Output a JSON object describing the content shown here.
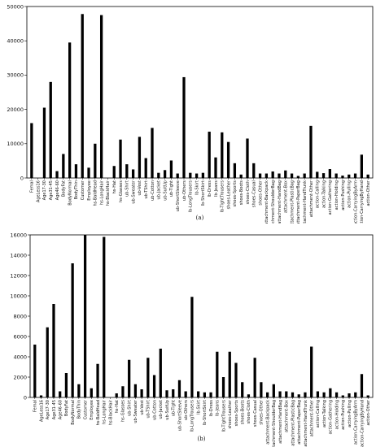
{
  "chart_data": [
    {
      "type": "bar",
      "caption": "(a)",
      "ylim": [
        0,
        50000
      ],
      "yticks": [
        0,
        10000,
        20000,
        30000,
        40000,
        50000
      ],
      "grid": false,
      "categories": [
        "Femal",
        "AgeLess16",
        "Age17-30",
        "Age31-45",
        "Age46-60",
        "BodyFat",
        "BodyNormal",
        "BodyThin",
        "Customer",
        "Employee",
        "hs-BaldHead",
        "hs-LongHair",
        "hs-BlackHair",
        "hs-Hat",
        "hs-Glasses",
        "ub-Shirt",
        "ub-Sweater",
        "ub-Vest",
        "ub-TShirt",
        "ub-Cotton",
        "ub-Jacket",
        "ub-SuitUp",
        "ub-Tight",
        "ub-ShortSleeve",
        "ub-Others",
        "lb-LongTrousers",
        "lb-Skirt",
        "lb-ShortSkirt",
        "lb-Dress",
        "lb-Jeans",
        "lb-TightTrousers",
        "shoes-Leather",
        "shoes-Sports",
        "shoes-Boots",
        "shoes-Cloth",
        "shoes-Casual",
        "shoes-Other",
        "attachment-Backpack",
        "attachment-ShoulderBag",
        "attachment-HandBag",
        "attachment-Box",
        "attachment-PlasticBag",
        "attachment-PaperBag",
        "attachment-HandTrunk",
        "attachment-Other",
        "action-Calling",
        "action-Talking",
        "action-Gathering",
        "action-Holding",
        "action-Pushing",
        "action-Pulling",
        "action-CarryingByArm",
        "action-CarryingByHand",
        "action-Other"
      ],
      "values": [
        16000,
        0,
        20500,
        28000,
        2000,
        7000,
        39500,
        4000,
        47800,
        3000,
        10000,
        47500,
        0,
        3500,
        11200,
        4000,
        2500,
        12000,
        5800,
        14600,
        1500,
        2300,
        5100,
        1300,
        29400,
        1500,
        1300,
        1500,
        13500,
        6000,
        13300,
        10500,
        4300,
        1000,
        11500,
        4300,
        1300,
        1300,
        1900,
        1300,
        2200,
        1300,
        600,
        1300,
        15200,
        1800,
        1400,
        2600,
        1300,
        700,
        1000,
        1300,
        6800,
        1000
      ]
    },
    {
      "type": "bar",
      "caption": "(b)",
      "ylim": [
        0,
        16000
      ],
      "yticks": [
        0,
        2000,
        4000,
        6000,
        8000,
        10000,
        12000,
        14000,
        16000
      ],
      "grid": false,
      "categories": [
        "Femal",
        "AgeLess16",
        "Age17-30",
        "Age31-45",
        "Age46-60",
        "BodyFat",
        "BodyNormal",
        "BodyThin",
        "Customer",
        "Employee",
        "hs-BaldHead",
        "hs-LongHair",
        "hs-BlackHair",
        "hs-Hat",
        "hs-Glasses",
        "ub-Shirt",
        "ub-Sweater",
        "ub-Vest",
        "ub-TShirt",
        "ub-Cotton",
        "ub-Jacket",
        "ub-SuitUp",
        "ub-Tight",
        "ub-ShortSleeve",
        "ub-Others",
        "lb-LongTrousers",
        "lb-Skirt",
        "lb-ShortSkirt",
        "lb-Dress",
        "lb-Jeans",
        "lb-TightTrousers",
        "shoes-Leather",
        "shoes-Sports",
        "shoes-Boots",
        "shoes-Cloth",
        "shoes-Casual",
        "shoes-Other",
        "attachment-Backpack",
        "attachment-ShoulderBag",
        "attachment-HandBag",
        "attachment-Box",
        "attachment-PlasticBag",
        "attachment-PaperBag",
        "attachment-HandTrunk",
        "attachment-Other",
        "action-Calling",
        "action-Talking",
        "action-Gathering",
        "action-Holding",
        "action-Pushing",
        "action-Pulling",
        "action-CarryingByArm",
        "action-CarryingByHand",
        "action-Other"
      ],
      "values": [
        5200,
        200,
        6900,
        9200,
        600,
        2400,
        13200,
        1300,
        16000,
        900,
        3300,
        15800,
        0,
        400,
        1100,
        3700,
        1300,
        800,
        3900,
        2200,
        4800,
        700,
        800,
        1700,
        600,
        9900,
        600,
        500,
        500,
        4500,
        2000,
        4500,
        3400,
        1500,
        300,
        3900,
        1500,
        500,
        1300,
        600,
        600,
        500,
        300,
        500,
        5000,
        600,
        500,
        900,
        500,
        200,
        400,
        500,
        2300,
        200
      ]
    }
  ]
}
